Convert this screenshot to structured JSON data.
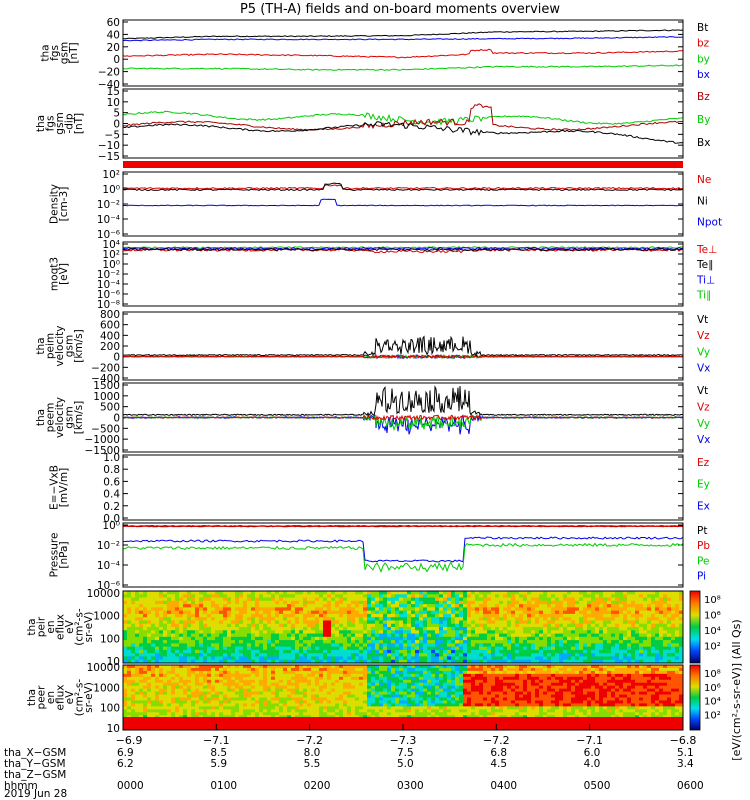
{
  "title": "P5 (TH-A) fields and on-board moments overview",
  "panels": [
    {
      "id": "fgs-gsm",
      "ylabel": [
        "tha",
        "fgs",
        "gsm",
        "[nT]"
      ],
      "ticks": [
        "60",
        "40",
        "20",
        "0",
        "−20",
        "−40"
      ],
      "legend": [
        {
          "text": "Bt",
          "color": "#000000"
        },
        {
          "text": "bz",
          "color": "#dd0000"
        },
        {
          "text": "by",
          "color": "#00cc00"
        },
        {
          "text": "bx",
          "color": "#0000ee"
        }
      ]
    },
    {
      "id": "fgs-gsm-dip",
      "ylabel": [
        "tha",
        "fgs",
        "gsm",
        "-dip",
        "[nT]"
      ],
      "ticks": [
        "15",
        "10",
        "5",
        "0",
        "−5",
        "−10",
        "−15"
      ],
      "legend": [
        {
          "text": "Bz",
          "color": "#aa0000"
        },
        {
          "text": "By",
          "color": "#00cc00"
        },
        {
          "text": "Bx",
          "color": "#000000"
        }
      ]
    },
    {
      "id": "density",
      "ylabel": [
        "Density",
        "[cm-3]"
      ],
      "ticks": [
        "10²",
        "10⁰",
        "10⁻²",
        "10⁻⁴",
        "10⁻⁶"
      ],
      "legend": [
        {
          "text": "Ne",
          "color": "#dd0000"
        },
        {
          "text": "Ni",
          "color": "#000000"
        },
        {
          "text": "Npot",
          "color": "#0000ee"
        }
      ]
    },
    {
      "id": "temperature",
      "ylabel": [
        "moqt3",
        "[eV]"
      ],
      "ticks": [
        "10⁴",
        "10²",
        "10⁰",
        "10⁻²",
        "10⁻⁴",
        "10⁻⁶",
        "10⁻⁸"
      ],
      "legend": [
        {
          "text": "Te⊥",
          "color": "#dd0000"
        },
        {
          "text": "Te∥",
          "color": "#000000"
        },
        {
          "text": "Ti⊥",
          "color": "#0000ee"
        },
        {
          "text": "Ti∥",
          "color": "#00cc00"
        }
      ]
    },
    {
      "id": "peim-velocity",
      "ylabel": [
        "tha",
        "peim",
        "velocity",
        "gsm",
        "[km/s]"
      ],
      "ticks": [
        "800",
        "600",
        "400",
        "200",
        "0",
        "−200",
        "−400"
      ],
      "legend": [
        {
          "text": "Vt",
          "color": "#000000"
        },
        {
          "text": "Vz",
          "color": "#dd0000"
        },
        {
          "text": "Vy",
          "color": "#00cc00"
        },
        {
          "text": "Vx",
          "color": "#0000ee"
        }
      ]
    },
    {
      "id": "peem-velocity",
      "ylabel": [
        "tha",
        "peem",
        "velocity",
        "gsm",
        "[km/s]"
      ],
      "ticks": [
        "1500",
        "1000",
        "500",
        "0",
        "−500",
        "−1000",
        "−1500"
      ],
      "legend": [
        {
          "text": "Vt",
          "color": "#000000"
        },
        {
          "text": "Vz",
          "color": "#dd0000"
        },
        {
          "text": "Vy",
          "color": "#00cc00"
        },
        {
          "text": "Vx",
          "color": "#0000ee"
        }
      ]
    },
    {
      "id": "efield",
      "ylabel": [
        "E=−VxB",
        "[mV/m]"
      ],
      "ticks": [
        "1.0",
        "0.8",
        "0.6",
        "0.4",
        "0.2",
        "0.0"
      ],
      "legend": [
        {
          "text": "Ez",
          "color": "#dd0000"
        },
        {
          "text": "Ey",
          "color": "#00cc00"
        },
        {
          "text": "Ex",
          "color": "#0000ee"
        }
      ]
    },
    {
      "id": "pressure",
      "ylabel": [
        "Pressure",
        "[nPa]"
      ],
      "ticks": [
        "10⁰",
        "10⁻²",
        "10⁻⁴",
        "10⁻⁶"
      ],
      "legend": [
        {
          "text": "Pt",
          "color": "#000000"
        },
        {
          "text": "Pb",
          "color": "#dd0000"
        },
        {
          "text": "Pe",
          "color": "#00cc00"
        },
        {
          "text": "Pi",
          "color": "#0000ee"
        }
      ]
    },
    {
      "id": "peir-spectrogram",
      "ylabel": [
        "tha",
        "peir",
        "en",
        "eflux",
        "eV",
        "(cm²-s-",
        "sr-eV)"
      ],
      "ticks": [
        "10000",
        "1000",
        "100",
        "10"
      ],
      "legend": []
    },
    {
      "id": "peer-spectrogram",
      "ylabel": [
        "tha",
        "peer",
        "en",
        "eflux",
        "eV",
        "(cm²-s-",
        "sr-eV)"
      ],
      "ticks": [
        "10000",
        "1000",
        "100",
        "10"
      ],
      "legend": []
    }
  ],
  "colorbar": {
    "label": "[eV/(cm²-s-sr-eV)] (All Qs)",
    "ticks_top": [
      "10⁸",
      "10⁶",
      "10⁴",
      "10²"
    ],
    "ticks_bottom": [
      "10⁸",
      "10⁶",
      "10⁴",
      "10²"
    ]
  },
  "xaxis": {
    "tick_labels": [
      "−6.9",
      "−7.1",
      "−7.2",
      "−7.3",
      "−7.2",
      "−7.1",
      "−6.8"
    ],
    "rows": [
      {
        "name": "tha_X−GSM",
        "values": [
          "6.9",
          "8.5",
          "8.0",
          "7.5",
          "6.8",
          "6.0",
          "5.1"
        ]
      },
      {
        "name": "tha_Y−GSM",
        "values": [
          "6.2",
          "5.9",
          "5.5",
          "5.0",
          "4.5",
          "4.0",
          "3.4"
        ]
      },
      {
        "name": "tha_Z−GSM",
        "values": [
          "",
          "",
          "",
          "",
          "",
          "",
          ""
        ]
      },
      {
        "name": "hhmm",
        "values": [
          "0000",
          "0100",
          "0200",
          "0300",
          "0400",
          "0500",
          "0600"
        ]
      }
    ],
    "date": "2019 Jun 28"
  },
  "chart_data": {
    "type": "line",
    "x": [
      "0000",
      "0100",
      "0200",
      "0300",
      "0400",
      "0500",
      "0600"
    ],
    "series": [
      {
        "name": "Bt",
        "values": [
          33,
          37,
          37,
          38,
          44,
          45,
          47
        ]
      },
      {
        "name": "bz",
        "values": [
          5,
          8,
          6,
          3,
          10,
          10,
          13
        ]
      },
      {
        "name": "by",
        "values": [
          -15,
          -15,
          -17,
          -17,
          -12,
          -12,
          -10
        ]
      },
      {
        "name": "bx",
        "values": [
          30,
          32,
          32,
          32,
          33,
          34,
          36
        ]
      },
      {
        "name": "Pt (nPa)",
        "values": [
          0.8,
          0.8,
          0.8,
          0.8,
          0.8,
          0.8,
          0.8
        ]
      },
      {
        "name": "Pi (nPa)",
        "values": [
          0.03,
          0.02,
          0.03,
          0.0003,
          0.03,
          0.05,
          0.08
        ]
      },
      {
        "name": "Pe (nPa)",
        "values": [
          0.005,
          0.004,
          0.005,
          5e-05,
          0.01,
          0.01,
          0.015
        ]
      }
    ],
    "xlim": [
      "0000",
      "0600"
    ]
  }
}
